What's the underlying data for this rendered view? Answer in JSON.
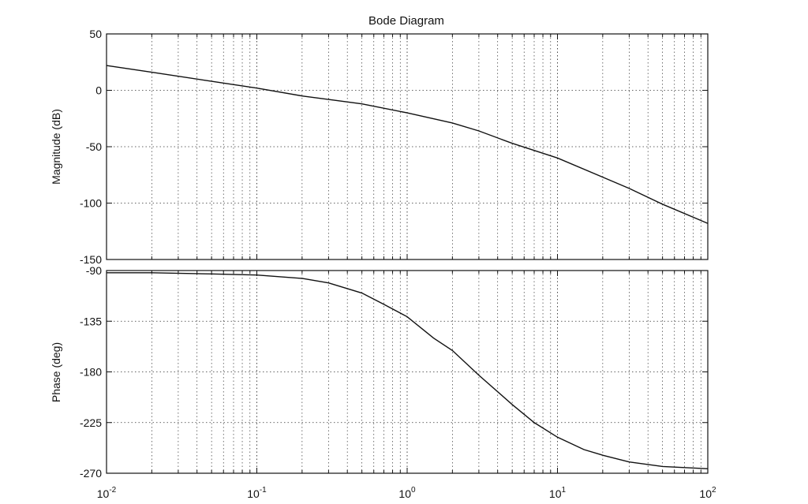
{
  "chart_data": {
    "type": "line",
    "title": "Bode Diagram",
    "xscale": "log",
    "xlim": [
      0.01,
      100
    ],
    "x_ticks": [
      {
        "base": "10",
        "exp": "-2"
      },
      {
        "base": "10",
        "exp": "-1"
      },
      {
        "base": "10",
        "exp": "0"
      },
      {
        "base": "10",
        "exp": "1"
      },
      {
        "base": "10",
        "exp": "2"
      }
    ],
    "grid": true,
    "grid_style": "dotted",
    "line_color": "#111111",
    "panels": [
      {
        "name": "magnitude",
        "ylabel": "Magnitude (dB)",
        "ylim": [
          -150,
          50
        ],
        "yticks": [
          "50",
          "0",
          "-50",
          "-100",
          "-150"
        ],
        "ytick_values": [
          50,
          0,
          -50,
          -100,
          -150
        ],
        "x": [
          0.01,
          0.02,
          0.05,
          0.1,
          0.2,
          0.5,
          1,
          2,
          3,
          5,
          10,
          20,
          30,
          50,
          100
        ],
        "y": [
          22,
          16,
          8,
          2,
          -5,
          -12,
          -20,
          -29,
          -36,
          -47,
          -60,
          -77,
          -87,
          -101,
          -118
        ]
      },
      {
        "name": "phase",
        "ylabel": "Phase (deg)",
        "ylim": [
          -270,
          -90
        ],
        "yticks": [
          "-90",
          "-135",
          "-180",
          "-225",
          "-270"
        ],
        "ytick_values": [
          -90,
          -135,
          -180,
          -225,
          -270
        ],
        "x": [
          0.01,
          0.02,
          0.05,
          0.1,
          0.2,
          0.3,
          0.5,
          0.7,
          1,
          1.5,
          2,
          3,
          5,
          7,
          10,
          15,
          20,
          30,
          50,
          100
        ],
        "y": [
          -92,
          -92,
          -93,
          -94,
          -97,
          -101,
          -110,
          -120,
          -131,
          -150,
          -161,
          -183,
          -209,
          -225,
          -238,
          -249,
          -254,
          -260,
          -264,
          -266
        ]
      }
    ]
  }
}
